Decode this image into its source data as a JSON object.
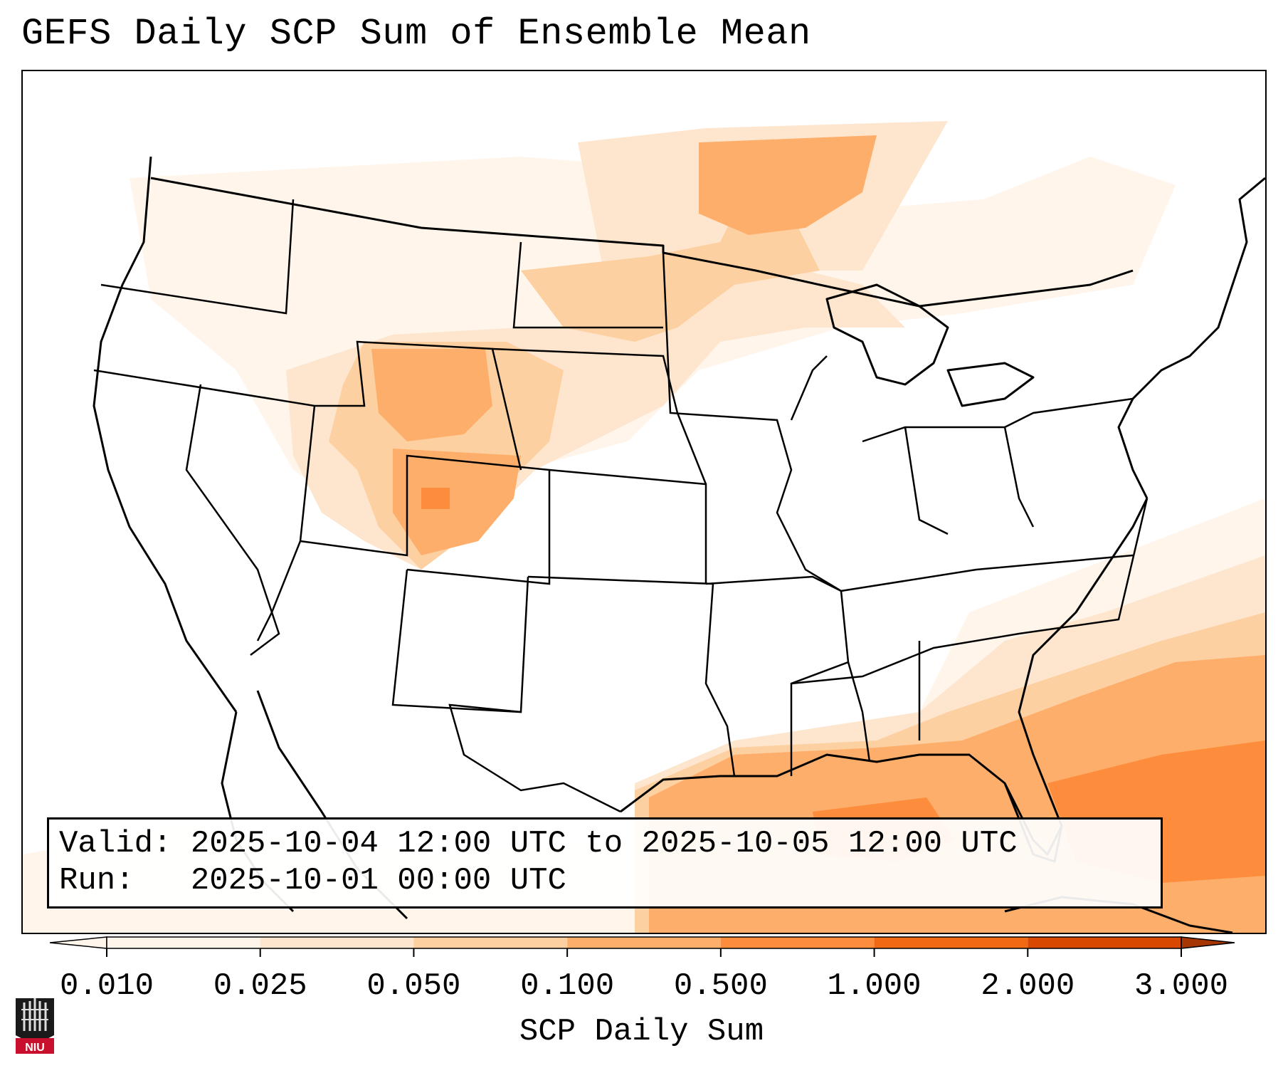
{
  "title": "GEFS Daily SCP Sum of Ensemble Mean",
  "info": {
    "valid_label": "Valid:",
    "valid_value": "2025-10-04 12:00 UTC to 2025-10-05 12:00 UTC",
    "run_label": "Run:",
    "run_value": "2025-10-01 00:00 UTC"
  },
  "colorbar": {
    "label": "SCP Daily Sum",
    "ticks": [
      "0.010",
      "0.025",
      "0.050",
      "0.100",
      "0.500",
      "1.000",
      "2.000",
      "3.000"
    ],
    "colors": [
      "#fff5eb",
      "#fee6ce",
      "#fdd0a2",
      "#fdae6b",
      "#fd8d3c",
      "#f16913",
      "#d94801",
      "#a63603"
    ]
  },
  "logo": {
    "text": "NIU"
  }
}
